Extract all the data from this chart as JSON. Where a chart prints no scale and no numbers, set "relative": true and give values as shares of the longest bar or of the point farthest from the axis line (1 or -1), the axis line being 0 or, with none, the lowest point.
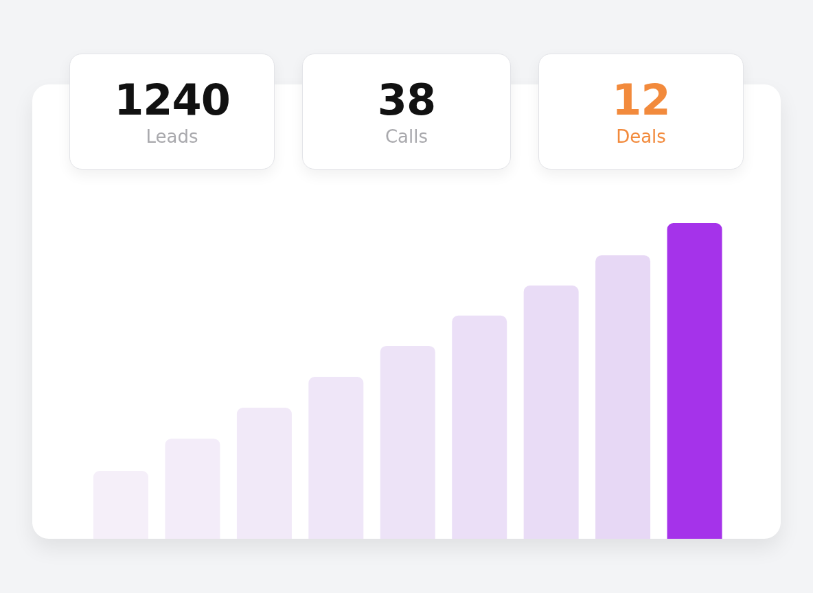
{
  "chart_data": {
    "type": "bar",
    "relative": true,
    "categories": [
      null,
      null,
      null,
      null,
      null,
      null,
      null,
      null,
      null
    ],
    "values": [
      0.215,
      0.317,
      0.415,
      0.513,
      0.611,
      0.707,
      0.802,
      0.898,
      1
    ],
    "colors": [
      "#f5eff9",
      "#f3ecf9",
      "#f1e9f8",
      "#efe6f8",
      "#ede3f7",
      "#ebdff7",
      "#e9dcf6",
      "#e7d8f5",
      "#a533ea"
    ],
    "annotations": [
      "1240",
      "Leads",
      "38",
      "Calls",
      "12",
      "Deals"
    ]
  }
}
